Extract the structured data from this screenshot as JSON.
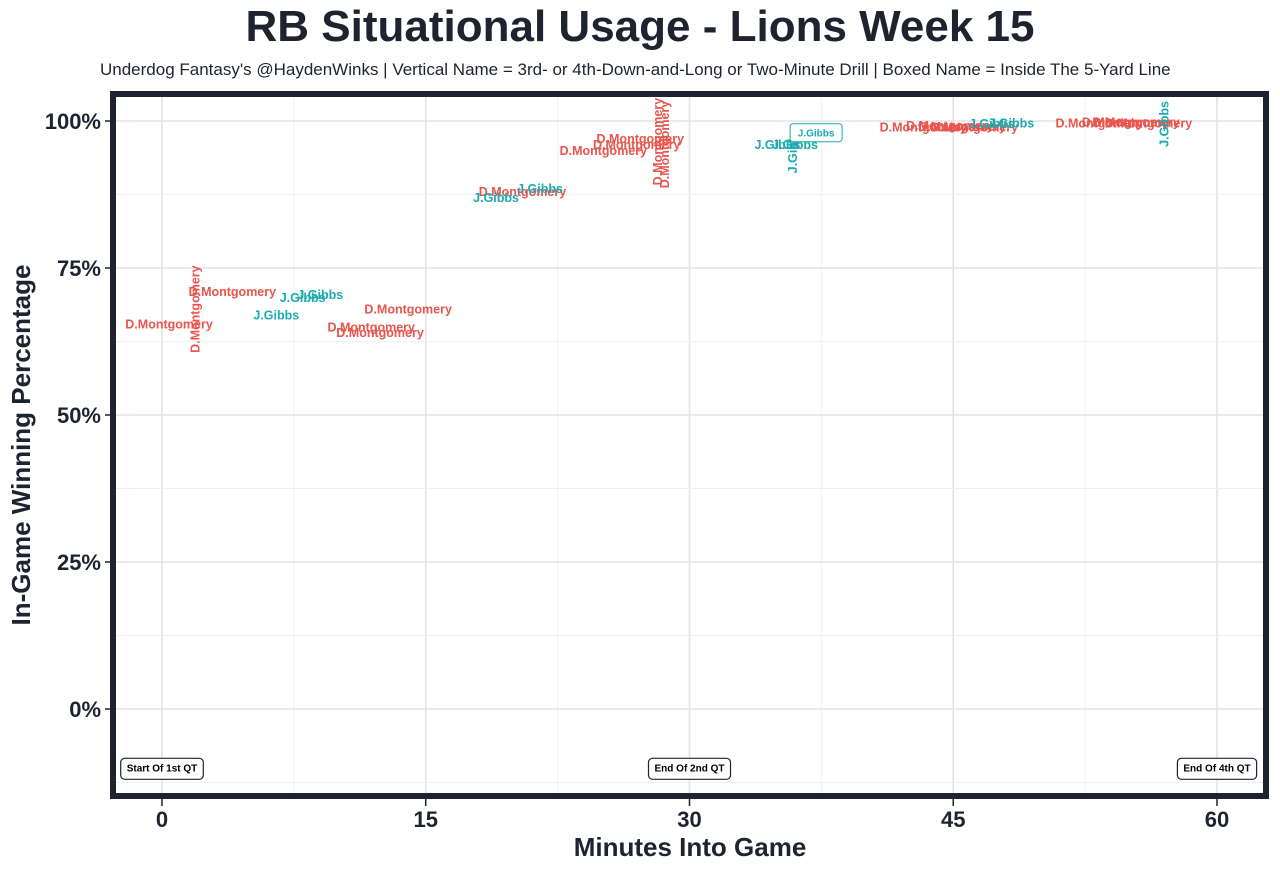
{
  "title": "RB Situational Usage - Lions Week 15",
  "subtitle": "Underdog Fantasy's @HaydenWinks | Vertical Name = 3rd- or 4th-Down-and-Long or Two-Minute Drill | Boxed Name = Inside The 5-Yard Line",
  "chart_data": {
    "type": "scatter",
    "title": "RB Situational Usage - Lions Week 15",
    "xlabel": "Minutes Into Game",
    "ylabel": "In-Game Winning Percentage",
    "xlim": [
      -2.5,
      62.5
    ],
    "ylim": [
      -15,
      105
    ],
    "x_ticks": [
      0,
      15,
      30,
      45,
      60
    ],
    "x_tick_labels": [
      "0",
      "15",
      "30",
      "45",
      "60"
    ],
    "y_ticks": [
      0,
      25,
      50,
      75,
      100
    ],
    "y_tick_labels": [
      "0%",
      "25%",
      "50%",
      "75%",
      "100%"
    ],
    "grid": true,
    "colors": {
      "D.Montgomery": "#e8554e",
      "J.Gibbs": "#1aabb0",
      "frame": "#1f2330"
    },
    "quarter_markers": [
      {
        "x": 0,
        "y": -10,
        "label": "Start Of 1st QT"
      },
      {
        "x": 30,
        "y": -10,
        "label": "End Of 2nd QT"
      },
      {
        "x": 60,
        "y": -10,
        "label": "End Of 4th QT"
      }
    ],
    "points": [
      {
        "player": "D.Montgomery",
        "x": 4.0,
        "y": 71.0,
        "style": "normal"
      },
      {
        "player": "D.Montgomery",
        "x": 1.9,
        "y": 68.0,
        "style": "vertical"
      },
      {
        "player": "D.Montgomery",
        "x": 0.4,
        "y": 65.5,
        "style": "normal"
      },
      {
        "player": "J.Gibbs",
        "x": 9.0,
        "y": 70.5,
        "style": "normal"
      },
      {
        "player": "J.Gibbs",
        "x": 8.0,
        "y": 70.0,
        "style": "normal"
      },
      {
        "player": "J.Gibbs",
        "x": 6.5,
        "y": 67.0,
        "style": "normal"
      },
      {
        "player": "D.Montgomery",
        "x": 14.0,
        "y": 68.0,
        "style": "normal"
      },
      {
        "player": "D.Montgomery",
        "x": 11.9,
        "y": 65.0,
        "style": "normal"
      },
      {
        "player": "D.Montgomery",
        "x": 12.4,
        "y": 64.0,
        "style": "normal"
      },
      {
        "player": "D.Montgomery",
        "x": 20.5,
        "y": 88.0,
        "style": "normal"
      },
      {
        "player": "J.Gibbs",
        "x": 21.5,
        "y": 88.5,
        "style": "normal"
      },
      {
        "player": "J.Gibbs",
        "x": 19.0,
        "y": 87.0,
        "style": "normal"
      },
      {
        "player": "D.Montgomery",
        "x": 27.2,
        "y": 97.0,
        "style": "normal"
      },
      {
        "player": "D.Montgomery",
        "x": 27.0,
        "y": 96.0,
        "style": "normal"
      },
      {
        "player": "D.Montgomery",
        "x": 25.1,
        "y": 95.0,
        "style": "normal"
      },
      {
        "player": "D.Montgomery",
        "x": 28.2,
        "y": 96.5,
        "style": "vertical"
      },
      {
        "player": "D.Montgomery",
        "x": 28.6,
        "y": 96.0,
        "style": "vertical"
      },
      {
        "player": "J.Gibbs",
        "x": 35.0,
        "y": 96.0,
        "style": "normal"
      },
      {
        "player": "J.Gibbs",
        "x": 36.0,
        "y": 96.0,
        "style": "normal"
      },
      {
        "player": "J.Gibbs",
        "x": 35.9,
        "y": 95.0,
        "style": "vertical"
      },
      {
        "player": "J.Gibbs",
        "x": 37.2,
        "y": 98.0,
        "style": "boxed"
      },
      {
        "player": "D.Montgomery",
        "x": 43.3,
        "y": 99.0,
        "style": "normal"
      },
      {
        "player": "D.Montgomery",
        "x": 44.8,
        "y": 99.2,
        "style": "normal"
      },
      {
        "player": "D.Montgomery",
        "x": 45.5,
        "y": 99.1,
        "style": "normal"
      },
      {
        "player": "D.Montgomery",
        "x": 46.2,
        "y": 99.0,
        "style": "normal"
      },
      {
        "player": "J.Gibbs",
        "x": 47.2,
        "y": 99.6,
        "style": "normal"
      },
      {
        "player": "J.Gibbs",
        "x": 48.3,
        "y": 99.7,
        "style": "normal"
      },
      {
        "player": "D.Montgomery",
        "x": 53.3,
        "y": 99.7,
        "style": "normal"
      },
      {
        "player": "D.Montgomery",
        "x": 54.8,
        "y": 99.8,
        "style": "normal"
      },
      {
        "player": "D.Montgomery",
        "x": 55.4,
        "y": 99.8,
        "style": "normal"
      },
      {
        "player": "D.Montgomery",
        "x": 56.1,
        "y": 99.7,
        "style": "normal"
      },
      {
        "player": "J.Gibbs",
        "x": 57.0,
        "y": 99.5,
        "style": "vertical"
      }
    ]
  }
}
